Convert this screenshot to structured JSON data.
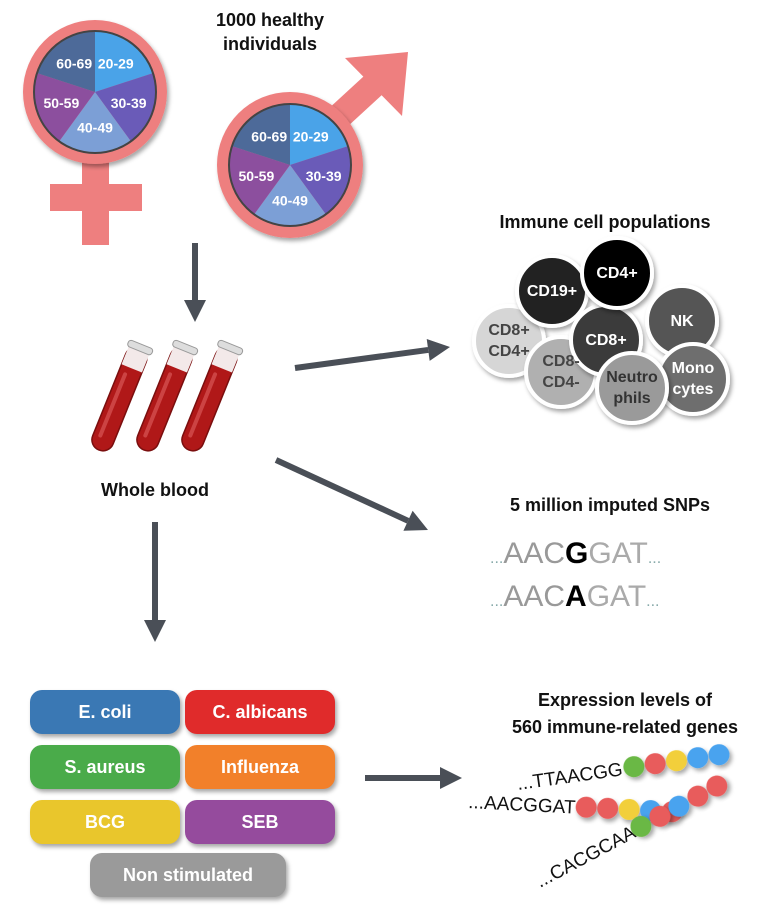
{
  "title": "1000 healthy individuals",
  "age_groups": [
    "20-29",
    "30-39",
    "40-49",
    "50-59",
    "60-69"
  ],
  "age_colors": [
    "#4aa3e8",
    "#6a5bb8",
    "#7c9fd6",
    "#8c4f9e",
    "#4d6a99"
  ],
  "symbol_color": "#ee7f7f",
  "arrow_color": "#4a4f57",
  "whole_blood": "Whole blood",
  "immune": {
    "title": "Immune cell populations",
    "cells": [
      {
        "label": "CD19+",
        "color": "#222222",
        "text": "#ffffff"
      },
      {
        "label": "CD4+",
        "color": "#000000",
        "text": "#ffffff"
      },
      {
        "label": "NK",
        "color": "#555555",
        "text": "#ffffff"
      },
      {
        "label": "CD8+ CD4+",
        "color": "#d6d6d6",
        "text": "#444444"
      },
      {
        "label": "CD8+",
        "color": "#3a3a3a",
        "text": "#ffffff"
      },
      {
        "label": "CD8- CD4-",
        "color": "#b0b0b0",
        "text": "#444444"
      },
      {
        "label": "Neutro phils",
        "color": "#9a9a9a",
        "text": "#333333"
      },
      {
        "label": "Mono cytes",
        "color": "#6e6e6e",
        "text": "#ffffff"
      }
    ]
  },
  "snps": {
    "title": "5 million imputed SNPs",
    "seq1": {
      "prefix": "AAC",
      "variant": "G",
      "suffix": "GAT"
    },
    "seq2": {
      "prefix": "AAC",
      "variant": "A",
      "suffix": "GAT"
    },
    "dots": "..."
  },
  "expression": {
    "title_line1": "Expression levels of",
    "title_line2": "560 immune-related genes",
    "sequences": [
      {
        "text": "...TTAACGG",
        "dots": [
          "#6bb844",
          "#e85c5c",
          "#f2cf3a",
          "#4aa3ef",
          "#4aa3ef"
        ]
      },
      {
        "text": "...AACGGAT",
        "dots": [
          "#e85c5c",
          "#e85c5c",
          "#f2cf3a",
          "#4aa3ef",
          "#e85c5c"
        ]
      },
      {
        "text": "...CACGCAA",
        "dots": [
          "#6bb844",
          "#e85c5c",
          "#4aa3ef",
          "#e85c5c",
          "#e85c5c"
        ]
      }
    ]
  },
  "stimuli": [
    {
      "label": "E. coli",
      "color": "#3a78b4"
    },
    {
      "label": "C. albicans",
      "color": "#e02b2b"
    },
    {
      "label": "S. aureus",
      "color": "#4aab4a"
    },
    {
      "label": "Influenza",
      "color": "#f2802a"
    },
    {
      "label": "BCG",
      "color": "#e9c62c"
    },
    {
      "label": "SEB",
      "color": "#954b9d"
    },
    {
      "label": "Non stimulated",
      "color": "#9a9a9a"
    }
  ]
}
